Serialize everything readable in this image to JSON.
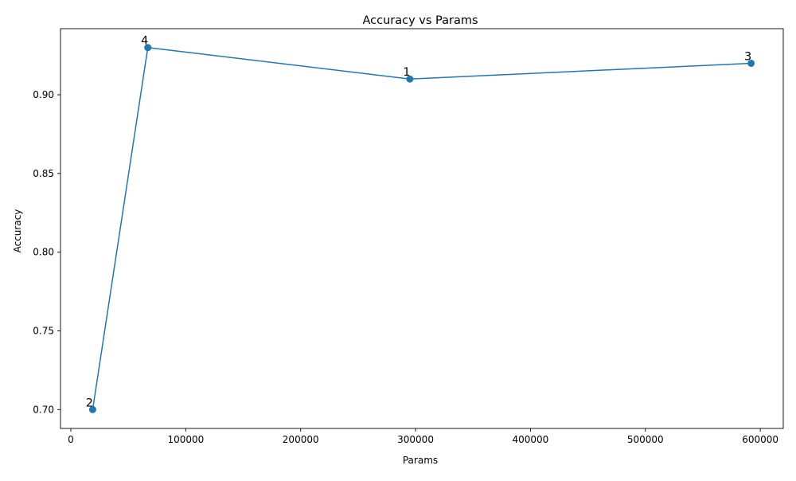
{
  "chart_data": {
    "type": "line",
    "title": "Accuracy vs Params",
    "xlabel": "Params",
    "ylabel": "Accuracy",
    "xlim": [
      -9000,
      620000
    ],
    "ylim": [
      0.688,
      0.942
    ],
    "xticks": [
      0,
      100000,
      200000,
      300000,
      400000,
      500000,
      600000
    ],
    "xtick_labels": [
      "0",
      "100000",
      "200000",
      "300000",
      "400000",
      "500000",
      "600000"
    ],
    "yticks": [
      0.7,
      0.75,
      0.8,
      0.85,
      0.9
    ],
    "ytick_labels": [
      "0.70",
      "0.75",
      "0.80",
      "0.85",
      "0.90"
    ],
    "grid": false,
    "legend": false,
    "series": [
      {
        "color": "#1f77b4",
        "marker": "circle",
        "points": [
          {
            "x": 19000,
            "y": 0.7,
            "label": "2"
          },
          {
            "x": 67000,
            "y": 0.93,
            "label": "4"
          },
          {
            "x": 295000,
            "y": 0.91,
            "label": "1"
          },
          {
            "x": 592000,
            "y": 0.92,
            "label": "3"
          }
        ]
      }
    ]
  }
}
